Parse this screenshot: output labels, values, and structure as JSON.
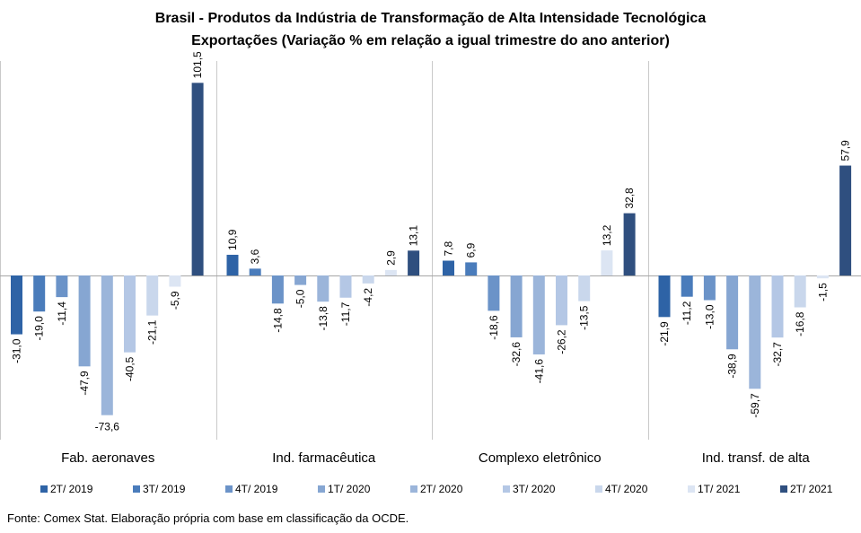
{
  "title_line1": "Brasil - Produtos da Indústria de Transformação  de Alta Intensidade Tecnológica",
  "title_line2": "Exportações (Variação % em relação a igual trimestre do ano anterior)",
  "source": "Fonte: Comex Stat. Elaboração própria com base em classificação da OCDE.",
  "chart_data": {
    "type": "bar",
    "categories": [
      "Fab. aeronaves",
      "Ind. farmacêutica",
      "Complexo eletrônico",
      "Ind. transf. de alta"
    ],
    "series": [
      {
        "name": "2T/ 2019",
        "color": "#2E63A6",
        "values": [
          -31.0,
          10.9,
          7.8,
          -21.9
        ],
        "labels": [
          "-31,0",
          "10,9",
          "7,8",
          "-21,9"
        ]
      },
      {
        "name": "3T/ 2019",
        "color": "#4A7CBB",
        "values": [
          -19.0,
          3.6,
          6.9,
          -11.2
        ],
        "labels": [
          "-19,0",
          "3,6",
          "6,9",
          "-11,2"
        ]
      },
      {
        "name": "4T/ 2019",
        "color": "#6B93C8",
        "values": [
          -11.4,
          -14.8,
          -18.6,
          -13.0
        ],
        "labels": [
          "-11,4",
          "-14,8",
          "-18,6",
          "-13,0"
        ]
      },
      {
        "name": "1T/ 2020",
        "color": "#86A6D2",
        "values": [
          -47.9,
          -5.0,
          -32.6,
          -38.9
        ],
        "labels": [
          "-47,9",
          "-5,0",
          "-32,6",
          "-38,9"
        ]
      },
      {
        "name": "2T/ 2020",
        "color": "#9BB5DA",
        "values": [
          -73.6,
          -13.8,
          -41.6,
          -59.7
        ],
        "labels": [
          "-73,6",
          "-13,8",
          "-41,6",
          "-59,7"
        ]
      },
      {
        "name": "3T/ 2020",
        "color": "#B4C7E5",
        "values": [
          -40.5,
          -11.7,
          -26.2,
          -32.7
        ],
        "labels": [
          "-40,5",
          "-11,7",
          "-26,2",
          "-32,7"
        ]
      },
      {
        "name": "4T/ 2020",
        "color": "#C9D7EC",
        "values": [
          -21.1,
          -4.2,
          -13.5,
          -16.8
        ],
        "labels": [
          "-21,1",
          "-4,2",
          "-13,5",
          "-16,8"
        ]
      },
      {
        "name": "1T/ 2021",
        "color": "#DCE5F3",
        "values": [
          -5.9,
          2.9,
          13.2,
          -1.5
        ],
        "labels": [
          "-5,9",
          "2,9",
          "13,2",
          "-1,5"
        ]
      },
      {
        "name": "2T/ 2021",
        "color": "#2F4F7F",
        "values": [
          101.5,
          13.1,
          32.8,
          57.9
        ],
        "labels": [
          "101,5",
          "13,1",
          "32,8",
          "57,9"
        ]
      }
    ],
    "ylim": [
      -80,
      105
    ],
    "grid": false,
    "legend_position": "bottom"
  }
}
